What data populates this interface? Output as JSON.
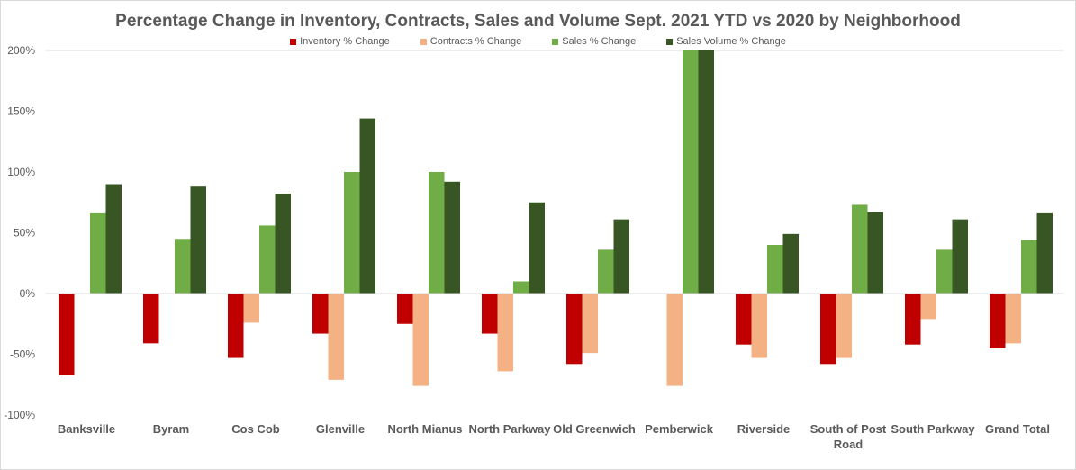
{
  "chart_data": {
    "type": "bar",
    "title": "Percentage Change in Inventory, Contracts, Sales and Volume Sept. 2021 YTD vs 2020 by Neighborhood",
    "xlabel": "",
    "ylabel": "",
    "ylim": [
      -100,
      200
    ],
    "yticks": [
      200,
      150,
      100,
      50,
      0,
      -50,
      -100
    ],
    "ytick_labels": [
      "200%",
      "150%",
      "100%",
      "50%",
      "0%",
      "-50%",
      "-100%"
    ],
    "legend_position": "top",
    "categories": [
      "Banksville",
      "Byram",
      "Cos Cob",
      "Glenville",
      "North Mianus",
      "North Parkway",
      "Old Greenwich",
      "Pemberwick",
      "Riverside",
      "South of Post Road",
      "South Parkway",
      "Grand Total"
    ],
    "series": [
      {
        "name": "Inventory % Change",
        "color": "#c00000",
        "values": [
          -67,
          -41,
          -53,
          -33,
          -25,
          -33,
          -58,
          0,
          -42,
          -58,
          -42,
          -45
        ]
      },
      {
        "name": "Contracts % Change",
        "color": "#f4b183",
        "values": [
          0,
          0,
          -24,
          -71,
          -76,
          -64,
          -49,
          -76,
          -53,
          -53,
          -21,
          -41
        ]
      },
      {
        "name": "Sales % Change",
        "color": "#70ad47",
        "values": [
          66,
          45,
          56,
          100,
          100,
          10,
          36,
          200,
          40,
          73,
          36,
          44
        ]
      },
      {
        "name": "Sales Volume % Change",
        "color": "#375623",
        "values": [
          90,
          88,
          82,
          144,
          92,
          75,
          61,
          200,
          49,
          67,
          61,
          66
        ]
      }
    ]
  }
}
